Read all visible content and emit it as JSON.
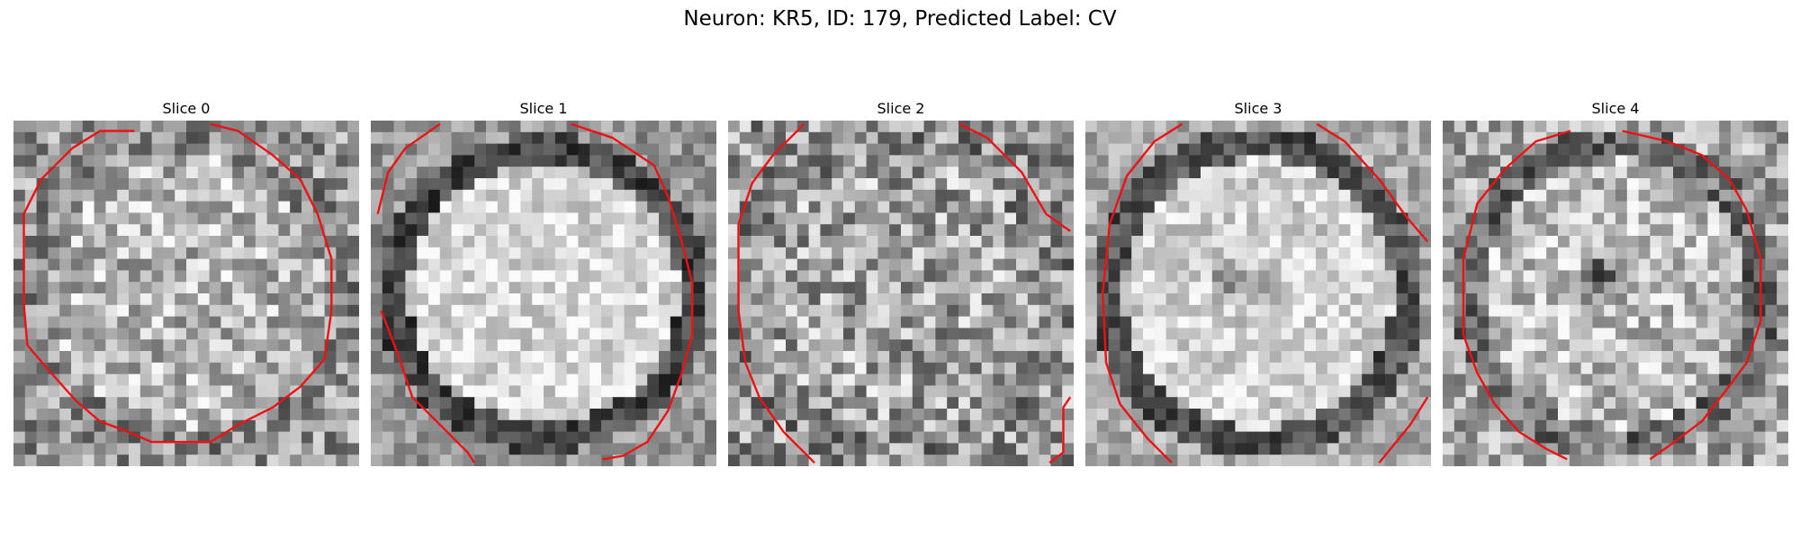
{
  "figure": {
    "title": "Neuron: KR5, ID: 179, Predicted Label: CV",
    "contour_color": "#ee1111"
  },
  "panels": [
    {
      "title": "Slice 0"
    },
    {
      "title": "Slice 1"
    },
    {
      "title": "Slice 2"
    },
    {
      "title": "Slice 3"
    },
    {
      "title": "Slice 4"
    }
  ]
}
